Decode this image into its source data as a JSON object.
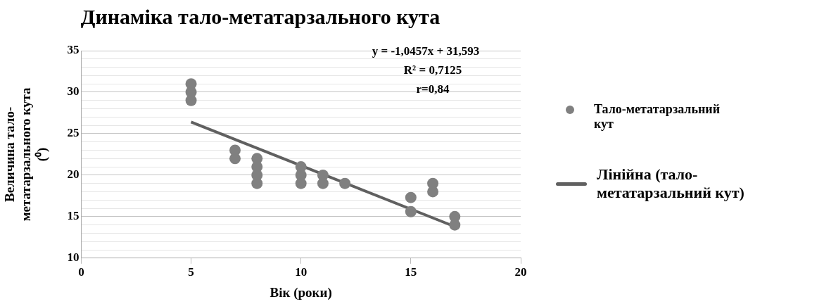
{
  "chart_data": {
    "type": "scatter",
    "title": "Динаміка тало-метатарзального кута",
    "xlabel": "Вік (роки)",
    "ylabel": "Величина тало-\nметатарзального кута\n(⁰)",
    "xlim": [
      0,
      20
    ],
    "xticks": [
      0,
      5,
      10,
      15,
      20
    ],
    "ylim": [
      10,
      35
    ],
    "yticks": [
      10,
      {
        "value": 11,
        "label": null
      },
      {
        "value": 12,
        "label": null
      },
      {
        "value": 13,
        "label": null
      },
      {
        "value": 14,
        "label": null
      },
      15,
      {
        "value": 16,
        "label": null
      },
      {
        "value": 17,
        "label": null
      },
      {
        "value": 18,
        "label": null
      },
      {
        "value": 19,
        "label": null
      },
      20,
      {
        "value": 21,
        "label": null
      },
      {
        "value": 22,
        "label": null
      },
      {
        "value": 23,
        "label": null
      },
      {
        "value": 24,
        "label": null
      },
      25,
      {
        "value": 26,
        "label": null
      },
      {
        "value": 27,
        "label": null
      },
      {
        "value": 28,
        "label": null
      },
      {
        "value": 29,
        "label": null
      },
      30,
      {
        "value": 31,
        "label": null
      },
      {
        "value": 32,
        "label": null
      },
      {
        "value": 33,
        "label": null
      },
      {
        "value": 34,
        "label": null
      },
      35
    ],
    "grid": "y",
    "legend": "right",
    "marker": "circle",
    "series": [
      {
        "name": "Тало-метатарзальний кут",
        "color": "#808080",
        "x": [
          5,
          5,
          5,
          7,
          7,
          8,
          8,
          8,
          8,
          10,
          10,
          10,
          11,
          11,
          12,
          15,
          15,
          16,
          16,
          17,
          17
        ],
        "values": [
          31,
          30,
          29,
          23,
          22,
          22,
          21,
          20,
          19,
          21,
          20,
          19,
          20,
          19,
          19,
          17.3,
          15.6,
          19,
          18,
          15,
          14
        ]
      },
      {
        "type": "line",
        "name": "Лінійна (тало-метатарзальний кут)",
        "color": "#606060",
        "line_style": "solid",
        "marker": "none",
        "x": [
          5,
          17
        ],
        "values": [
          26.4,
          13.8
        ]
      }
    ],
    "annotations": [
      "y = -1,0457x + 31,593",
      "R² = 0,7125",
      "r=0,84"
    ]
  }
}
